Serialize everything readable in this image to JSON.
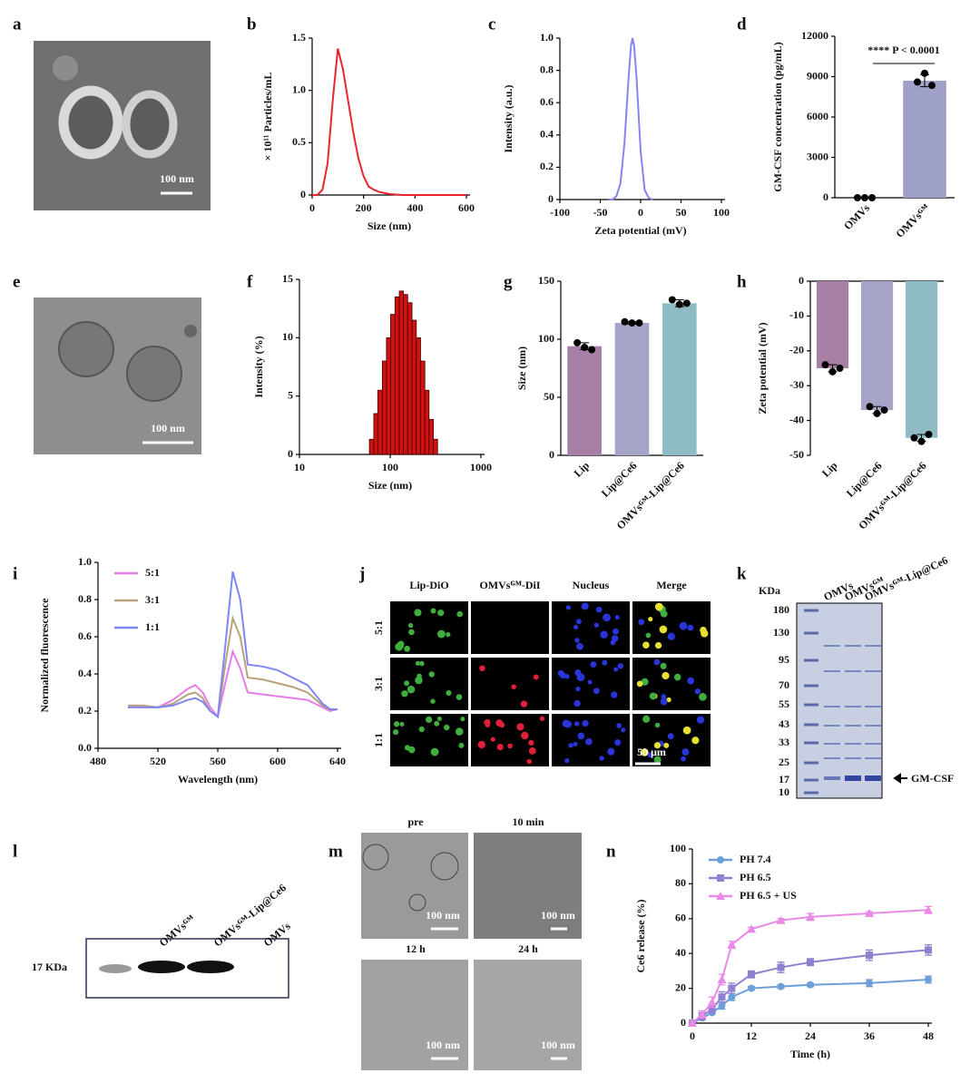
{
  "chart_data": [
    {
      "panel": "a",
      "type": "image",
      "scale_bar": "100 nm"
    },
    {
      "panel": "b",
      "type": "line",
      "xlabel": "Size (nm)",
      "ylabel": "× 10¹¹ Particles/mL",
      "x": [
        0,
        20,
        40,
        60,
        80,
        100,
        120,
        140,
        160,
        180,
        200,
        220,
        240,
        260,
        280,
        300,
        350,
        400,
        500,
        600
      ],
      "series": [
        {
          "color": "#e8262b",
          "values": [
            0,
            0,
            0.05,
            0.3,
            0.9,
            1.4,
            1.2,
            0.9,
            0.6,
            0.35,
            0.18,
            0.08,
            0.05,
            0.03,
            0.02,
            0.01,
            0,
            0,
            0,
            0
          ]
        }
      ],
      "xlim": [
        0,
        600
      ],
      "ylim": [
        0,
        1.5
      ],
      "xticks": [
        0,
        200,
        400,
        600
      ],
      "yticks": [
        0,
        0.5,
        {
          "value": 1,
          "label": "1.0"
        },
        1.5
      ]
    },
    {
      "panel": "c",
      "type": "line",
      "xlabel": "Zeta potential (mV)",
      "ylabel": "Intensity (a.u.)",
      "x": [
        -40,
        -35,
        -30,
        -25,
        -20,
        -15,
        -12,
        -10,
        -8,
        -5,
        0,
        5,
        10,
        15
      ],
      "series": [
        {
          "color": "#8585f0",
          "values": [
            0,
            0,
            0.02,
            0.1,
            0.35,
            0.75,
            0.95,
            1.0,
            0.95,
            0.75,
            0.3,
            0.06,
            0.01,
            0
          ]
        }
      ],
      "xlim": [
        -100,
        100
      ],
      "ylim": [
        0,
        1
      ],
      "xticks": [
        -100,
        -50,
        0,
        50,
        100
      ],
      "yticks": [
        0,
        0.2,
        0.4,
        0.6,
        0.8,
        {
          "value": 1,
          "label": "1.0"
        }
      ]
    },
    {
      "panel": "d",
      "type": "bar",
      "ylabel": "GM-CSF concentration (pg/mL)",
      "annotation": "**** P < 0.0001",
      "categories": [
        "OMVs",
        "OMVsᴳᴹ"
      ],
      "values": [
        0,
        8700
      ],
      "errors": [
        0,
        450
      ],
      "points": [
        [
          0,
          0,
          0
        ],
        [
          8600,
          9250,
          8350
        ]
      ],
      "colors": [
        "#9fa0c8",
        "#9fa0c8"
      ],
      "ylim": [
        0,
        12000
      ],
      "yticks": [
        0,
        3000,
        6000,
        9000,
        12000
      ]
    },
    {
      "panel": "e",
      "type": "image",
      "scale_bar": "100 nm"
    },
    {
      "panel": "f",
      "type": "histogram",
      "xlabel": "Size (nm)",
      "ylabel": "Intensity (%)",
      "xscale": "log",
      "color": "#d0110f",
      "bins": [
        59,
        66,
        73,
        82,
        91,
        101,
        113,
        126,
        140,
        156,
        174,
        194,
        216,
        241,
        268,
        299,
        333
      ],
      "values": [
        1.3,
        3.5,
        5.5,
        8,
        10,
        12,
        13.5,
        14,
        13.7,
        13,
        11.5,
        10,
        8,
        5.5,
        3,
        1.3
      ],
      "xlim": [
        10,
        1000
      ],
      "ylim": [
        0,
        15
      ],
      "xticks": [
        10,
        100,
        1000
      ],
      "yticks": [
        0,
        5,
        10,
        15
      ]
    },
    {
      "panel": "g",
      "type": "bar",
      "ylabel": "Size (nm)",
      "categories": [
        "Lip",
        "Lip@Ce6",
        "OMVsᴳᴹ-Lip@Ce6"
      ],
      "values": [
        94,
        114,
        131
      ],
      "errors": [
        3,
        1,
        3
      ],
      "points": [
        [
          97,
          93,
          91
        ],
        [
          115,
          114,
          114
        ],
        [
          134,
          130,
          131
        ]
      ],
      "colors": [
        "#a77fa5",
        "#a5a4c6",
        "#8fbcc4"
      ],
      "ylim": [
        0,
        150
      ],
      "yticks": [
        0,
        50,
        100,
        150
      ]
    },
    {
      "panel": "h",
      "type": "bar",
      "ylabel": "Zeta potential (mV)",
      "categories": [
        "Lip",
        "Lip@Ce6",
        "OMVsᴳᴹ-Lip@Ce6"
      ],
      "values": [
        -25,
        -37,
        -45
      ],
      "errors": [
        1,
        1,
        1
      ],
      "points": [
        [
          -24,
          -26,
          -25
        ],
        [
          -36,
          -38,
          -37
        ],
        [
          -45,
          -46,
          -44
        ]
      ],
      "colors": [
        "#a77fa5",
        "#a5a4c6",
        "#8fbcc4"
      ],
      "ylim": [
        -50,
        0
      ],
      "yticks": [
        0,
        -10,
        -20,
        -30,
        -40,
        -50
      ]
    },
    {
      "panel": "i",
      "type": "line",
      "xlabel": "Wavelength (nm)",
      "ylabel": "Normalized fluorescence",
      "legend": "upper left",
      "x": [
        500,
        510,
        520,
        530,
        540,
        545,
        550,
        555,
        560,
        565,
        570,
        575,
        580,
        590,
        600,
        610,
        620,
        630,
        635,
        640
      ],
      "series": [
        {
          "name": "5:1",
          "color": "#e77ce5",
          "values": [
            0.23,
            0.23,
            0.22,
            0.26,
            0.32,
            0.34,
            0.3,
            0.22,
            0.17,
            0.35,
            0.52,
            0.43,
            0.3,
            0.29,
            0.28,
            0.27,
            0.26,
            0.22,
            0.2,
            0.21
          ]
        },
        {
          "name": "3:1",
          "color": "#b9a27a",
          "values": [
            0.23,
            0.23,
            0.22,
            0.24,
            0.29,
            0.3,
            0.27,
            0.2,
            0.17,
            0.45,
            0.7,
            0.6,
            0.38,
            0.37,
            0.35,
            0.33,
            0.3,
            0.23,
            0.21,
            0.21
          ]
        },
        {
          "name": "1:1",
          "color": "#7f85f5",
          "values": [
            0.22,
            0.22,
            0.22,
            0.23,
            0.26,
            0.27,
            0.25,
            0.2,
            0.17,
            0.55,
            0.95,
            0.8,
            0.45,
            0.44,
            0.42,
            0.38,
            0.34,
            0.24,
            0.21,
            0.21
          ]
        }
      ],
      "xlim": [
        480,
        640
      ],
      "ylim": [
        0,
        1
      ],
      "xticks": [
        480,
        520,
        560,
        600,
        640
      ],
      "yticks": [
        {
          "value": 0,
          "label": "0.0"
        },
        0.2,
        0.4,
        0.6,
        0.8,
        {
          "value": 1,
          "label": "1.0"
        }
      ]
    },
    {
      "panel": "j",
      "type": "image_grid",
      "columns": [
        "Lip-DiO",
        "OMVsᴳᴹ-DiI",
        "Nucleus",
        "Merge"
      ],
      "rows": [
        "5:1",
        "3:1",
        "1:1"
      ],
      "scale_bar": "50 μm"
    },
    {
      "panel": "k",
      "type": "gel",
      "unit": "KDa",
      "markers": [
        180,
        130,
        95,
        70,
        55,
        43,
        33,
        25,
        17,
        10
      ],
      "lanes": [
        "OMVs",
        "OMVsᴳᴹ",
        "OMVsᴳᴹ-Lip@Ce6"
      ],
      "annotation": "GM-CSF"
    },
    {
      "panel": "l",
      "type": "blot",
      "band_label": "17 KDa",
      "lanes": [
        "OMVsᴳᴹ",
        "OMVsᴳᴹ-Lip@Ce6",
        "OMVs"
      ]
    },
    {
      "panel": "m",
      "type": "image_grid",
      "captions": [
        "pre",
        "10 min",
        "12 h",
        "24 h"
      ],
      "scale_bars": [
        "100 nm",
        "100 nm",
        "100 nm",
        "100 nm"
      ]
    },
    {
      "panel": "n",
      "type": "line",
      "xlabel": "Time (h)",
      "ylabel": "Ce6 release (%)",
      "legend": "upper left",
      "x": [
        0,
        2,
        4,
        6,
        8,
        12,
        18,
        24,
        36,
        48
      ],
      "series": [
        {
          "name": "PH 7.4",
          "color": "#6e9fd8",
          "marker": "circle",
          "values": [
            0,
            3,
            6,
            10,
            15,
            20,
            21,
            22,
            23,
            25
          ],
          "errors": [
            1,
            1,
            1,
            2,
            2,
            1,
            1,
            1,
            2,
            2
          ]
        },
        {
          "name": "PH 6.5",
          "color": "#9080d0",
          "marker": "square",
          "values": [
            0,
            4,
            8,
            15,
            20,
            28,
            32,
            35,
            39,
            42
          ],
          "errors": [
            1,
            2,
            2,
            3,
            3,
            2,
            3,
            2,
            3,
            3
          ]
        },
        {
          "name": "PH 6.5 + US",
          "color": "#e98ae6",
          "marker": "triangle",
          "values": [
            0,
            5,
            12,
            25,
            45,
            54,
            59,
            61,
            63,
            65
          ],
          "errors": [
            1,
            2,
            3,
            3,
            2,
            1,
            1,
            2,
            1,
            2
          ]
        }
      ],
      "xlim": [
        0,
        48
      ],
      "ylim": [
        0,
        100
      ],
      "xticks": [
        0,
        12,
        24,
        36,
        48
      ],
      "yticks": [
        0,
        20,
        40,
        60,
        80,
        100
      ]
    }
  ]
}
